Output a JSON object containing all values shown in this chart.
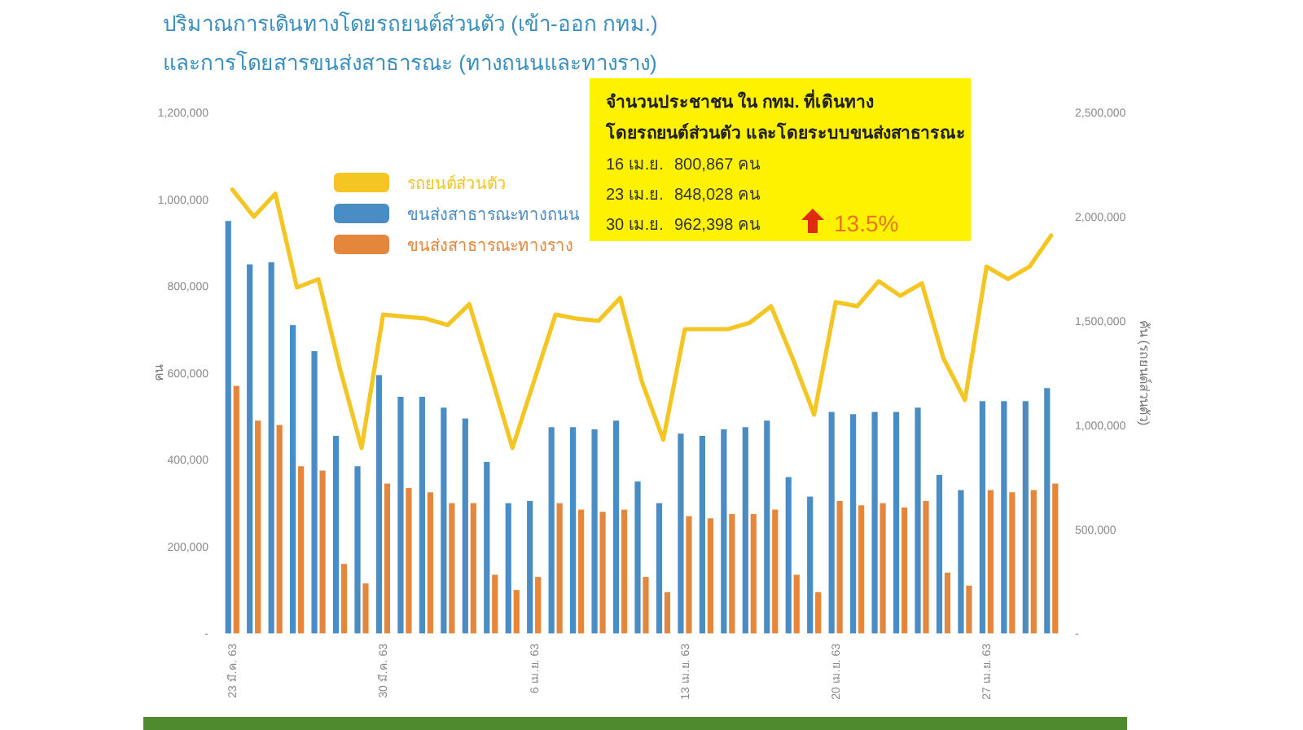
{
  "chart_data": {
    "type": "bar",
    "title": "ปริมาณการเดินทางโดยรถยนต์ส่วนตัว (เข้า-ออก กทม.)\nและการโดยสารขนส่งสาธารณะ (ทางถนนและทางราง)",
    "ylabel": "คน",
    "y2label": "คัน (รถยนต์ส่วนตัว)",
    "categories": [
      "23 มี.ค. 63",
      null,
      null,
      null,
      null,
      null,
      null,
      "30 มี.ค. 63",
      null,
      null,
      null,
      null,
      null,
      null,
      "6 เม.ย. 63",
      null,
      null,
      null,
      null,
      null,
      null,
      "13 เม.ย. 63",
      null,
      null,
      null,
      null,
      null,
      null,
      "20 เม.ย. 63",
      null,
      null,
      null,
      null,
      null,
      null,
      "27 เม.ย. 63",
      null,
      null,
      null
    ],
    "series": [
      {
        "name": "รถยนต์ส่วนตัว",
        "type": "line",
        "axis": "y2",
        "color": "#f3c624",
        "values": [
          2130000,
          2000000,
          2110000,
          1660000,
          1700000,
          1270000,
          890000,
          1530000,
          1520000,
          1510000,
          1480000,
          1580000,
          1240000,
          890000,
          1210000,
          1530000,
          1510000,
          1500000,
          1610000,
          1210000,
          930000,
          1460000,
          1460000,
          1460000,
          1490000,
          1570000,
          1320000,
          1050000,
          1590000,
          1570000,
          1690000,
          1620000,
          1680000,
          1320000,
          1120000,
          1760000,
          1700000,
          1760000,
          1910000
        ]
      },
      {
        "name": "ขนส่งสาธารณะทางถนน",
        "color": "#4a8cc4",
        "values": [
          950000,
          850000,
          855000,
          710000,
          650000,
          455000,
          385000,
          595000,
          545000,
          545000,
          520000,
          495000,
          395000,
          300000,
          305000,
          475000,
          475000,
          470000,
          490000,
          350000,
          300000,
          460000,
          455000,
          470000,
          475000,
          490000,
          360000,
          315000,
          510000,
          505000,
          510000,
          510000,
          520000,
          365000,
          330000,
          535000,
          535000,
          535000,
          565000
        ]
      },
      {
        "name": "ขนส่งสาธารณะทางราง",
        "color": "#e4873c",
        "values": [
          570000,
          490000,
          480000,
          385000,
          375000,
          160000,
          115000,
          345000,
          335000,
          325000,
          300000,
          300000,
          135000,
          100000,
          130000,
          300000,
          285000,
          280000,
          285000,
          130000,
          95000,
          270000,
          265000,
          275000,
          275000,
          285000,
          135000,
          95000,
          305000,
          295000,
          300000,
          290000,
          305000,
          140000,
          110000,
          330000,
          325000,
          330000,
          345000
        ]
      }
    ],
    "ylim": [
      0,
      1200000
    ],
    "yticks": [
      {
        "value": 0,
        "label": "-"
      },
      {
        "value": 200000,
        "label": "200,000"
      },
      {
        "value": 400000,
        "label": "400,000"
      },
      {
        "value": 600000,
        "label": "600,000"
      },
      {
        "value": 800000,
        "label": "800,000"
      },
      {
        "value": 1000000,
        "label": "1,000,000"
      },
      {
        "value": 1200000,
        "label": "1,200,000"
      }
    ],
    "y2lim": [
      0,
      2500000
    ],
    "y2ticks": [
      {
        "value": 0,
        "label": "-"
      },
      {
        "value": 500000,
        "label": "500,000"
      },
      {
        "value": 1000000,
        "label": "1,000,000"
      },
      {
        "value": 1500000,
        "label": "1,500,000"
      },
      {
        "value": 2000000,
        "label": "2,000,000"
      },
      {
        "value": 2500000,
        "label": "2,500,000"
      }
    ],
    "legend": "top left",
    "annotations": [
      "จำนวนประชาชน ใน กทม. ที่เดินทาง",
      "โดยรถยนต์ส่วนตัว และโดยระบบขนส่งสาธารณะ",
      "16 เม.ย.",
      "800,867 คน",
      "23 เม.ย.",
      "848,028 คน",
      "30 เม.ย.",
      "962,398 คน",
      "13.5%"
    ]
  }
}
